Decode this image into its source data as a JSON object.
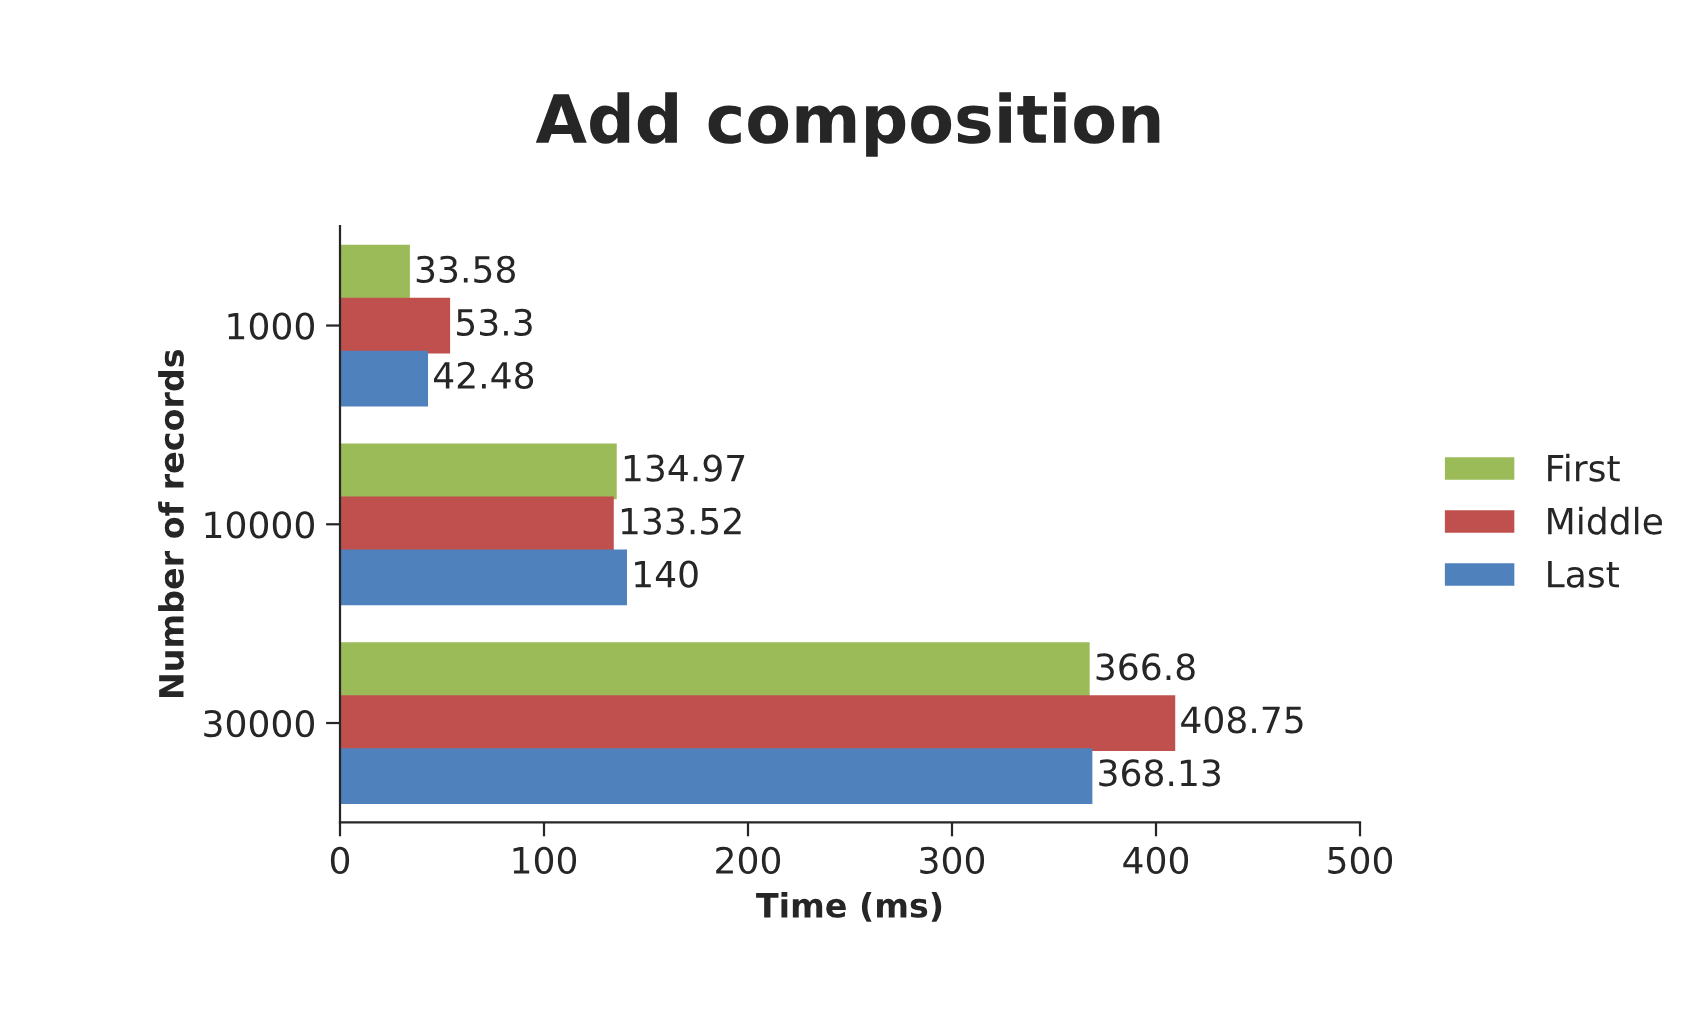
{
  "chart_data": {
    "type": "bar",
    "orientation": "horizontal",
    "title": "Add composition",
    "xlabel": "Time (ms)",
    "ylabel": "Number of records",
    "categories": [
      "1000",
      "10000",
      "30000"
    ],
    "series": [
      {
        "name": "First",
        "color": "#9bbb59",
        "values": [
          33.58,
          134.97,
          366.8
        ]
      },
      {
        "name": "Middle",
        "color": "#c0504d",
        "values": [
          53.3,
          133.52,
          408.75
        ]
      },
      {
        "name": "Last",
        "color": "#4f81bd",
        "values": [
          42.48,
          140,
          368.13
        ]
      }
    ],
    "xlim": [
      0,
      500
    ],
    "xticks": [
      0,
      100,
      200,
      300,
      400,
      500
    ],
    "data_labels": true,
    "legend": "right",
    "grid": false
  }
}
